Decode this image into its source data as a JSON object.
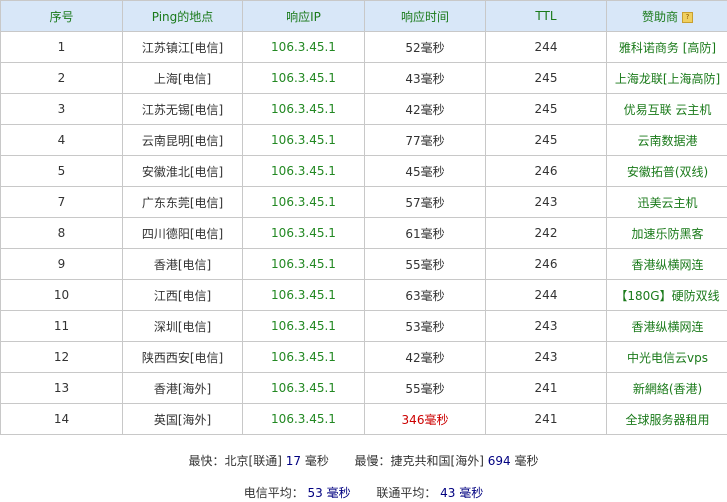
{
  "headers": [
    "序号",
    "Ping的地点",
    "响应IP",
    "响应时间",
    "TTL",
    "赞助商"
  ],
  "help_icon": "question-icon",
  "rows": [
    {
      "no": "1",
      "loc": "江苏镇江[电信]",
      "ip": "106.3.45.1",
      "time": "52毫秒",
      "ttl": "244",
      "sponsor": "雅科诺商务 [高防]"
    },
    {
      "no": "2",
      "loc": "上海[电信]",
      "ip": "106.3.45.1",
      "time": "43毫秒",
      "ttl": "245",
      "sponsor": "上海龙联[上海高防]"
    },
    {
      "no": "3",
      "loc": "江苏无锡[电信]",
      "ip": "106.3.45.1",
      "time": "42毫秒",
      "ttl": "245",
      "sponsor": "优易互联 云主机"
    },
    {
      "no": "4",
      "loc": "云南昆明[电信]",
      "ip": "106.3.45.1",
      "time": "77毫秒",
      "ttl": "245",
      "sponsor": "云南数据港"
    },
    {
      "no": "5",
      "loc": "安徽淮北[电信]",
      "ip": "106.3.45.1",
      "time": "45毫秒",
      "ttl": "246",
      "sponsor": "安徽拓普(双线)"
    },
    {
      "no": "7",
      "loc": "广东东莞[电信]",
      "ip": "106.3.45.1",
      "time": "57毫秒",
      "ttl": "243",
      "sponsor": "迅美云主机"
    },
    {
      "no": "8",
      "loc": "四川德阳[电信]",
      "ip": "106.3.45.1",
      "time": "61毫秒",
      "ttl": "242",
      "sponsor": "加速乐防黑客"
    },
    {
      "no": "9",
      "loc": "香港[电信]",
      "ip": "106.3.45.1",
      "time": "55毫秒",
      "ttl": "246",
      "sponsor": "香港纵横网连"
    },
    {
      "no": "10",
      "loc": "江西[电信]",
      "ip": "106.3.45.1",
      "time": "63毫秒",
      "ttl": "244",
      "sponsor": "【180G】硬防双线"
    },
    {
      "no": "11",
      "loc": "深圳[电信]",
      "ip": "106.3.45.1",
      "time": "53毫秒",
      "ttl": "243",
      "sponsor": "香港纵横网连"
    },
    {
      "no": "12",
      "loc": "陕西西安[电信]",
      "ip": "106.3.45.1",
      "time": "42毫秒",
      "ttl": "243",
      "sponsor": "中光电信云vps"
    },
    {
      "no": "13",
      "loc": "香港[海外]",
      "ip": "106.3.45.1",
      "time": "55毫秒",
      "ttl": "241",
      "sponsor": "新網絡(香港)"
    },
    {
      "no": "14",
      "loc": "英国[海外]",
      "ip": "106.3.45.1",
      "time": "346毫秒",
      "ttl": "241",
      "sponsor": "全球服务器租用",
      "slow": true
    }
  ],
  "summary": {
    "fastest_label": "最快：北京[联通]",
    "fastest_value": "17",
    "unit": "毫秒",
    "slowest_label": "最慢：捷克共和国[海外]",
    "slowest_value": "694",
    "telecom_avg_label": "电信平均：",
    "telecom_avg_value": "53",
    "unicom_avg_label": "联通平均：",
    "unicom_avg_value": "43"
  }
}
